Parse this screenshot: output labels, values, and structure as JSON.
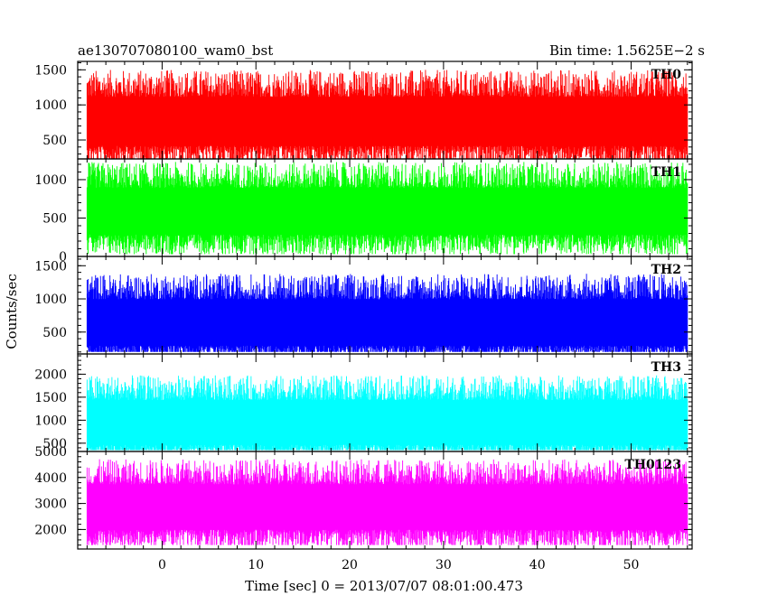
{
  "header": {
    "left_title": "ae130707080100_wam0_bst",
    "right_title": "Bin time: 1.5625E−2 s"
  },
  "axes": {
    "ylabel": "Counts/sec",
    "xlabel": "Time [sec] 0 = 2013/07/07 08:01:00.473"
  },
  "chart_data": {
    "type": "line",
    "title": "ae130707080100_wam0_bst",
    "subtitle": "Bin time: 1.5625E−2 s",
    "xlabel": "Time [sec] 0 = 2013/07/07 08:01:00.473",
    "ylabel": "Counts/sec",
    "xlim": [
      -9,
      56.5
    ],
    "x_data_range": [
      -8.0,
      56.0
    ],
    "x_ticks": [
      0,
      10,
      20,
      30,
      40,
      50
    ],
    "grid": false,
    "panels": [
      {
        "name": "TH0",
        "color": "#ff0000",
        "ylim": [
          230,
          1620
        ],
        "y_ticks": [
          500,
          1000,
          1500
        ],
        "mean": 800,
        "low": 200,
        "high": 1600
      },
      {
        "name": "TH1",
        "color": "#00ff00",
        "ylim": [
          0,
          1270
        ],
        "y_ticks": [
          0,
          500,
          1000
        ],
        "mean": 620,
        "low": 30,
        "high": 1250
      },
      {
        "name": "TH2",
        "color": "#0000ff",
        "ylim": [
          170,
          1640
        ],
        "y_ticks": [
          500,
          1000,
          1500
        ],
        "mean": 680,
        "low": 200,
        "high": 1600
      },
      {
        "name": "TH3",
        "color": "#00ffff",
        "ylim": [
          320,
          2440
        ],
        "y_ticks": [
          500,
          1000,
          1500,
          2000
        ],
        "mean": 1000,
        "low": 350,
        "high": 2300
      },
      {
        "name": "TH0123",
        "color": "#ff00ff",
        "ylim": [
          1250,
          5000
        ],
        "y_ticks": [
          2000,
          3000,
          4000,
          5000
        ],
        "mean": 2950,
        "low": 1400,
        "high": 4900
      }
    ]
  }
}
